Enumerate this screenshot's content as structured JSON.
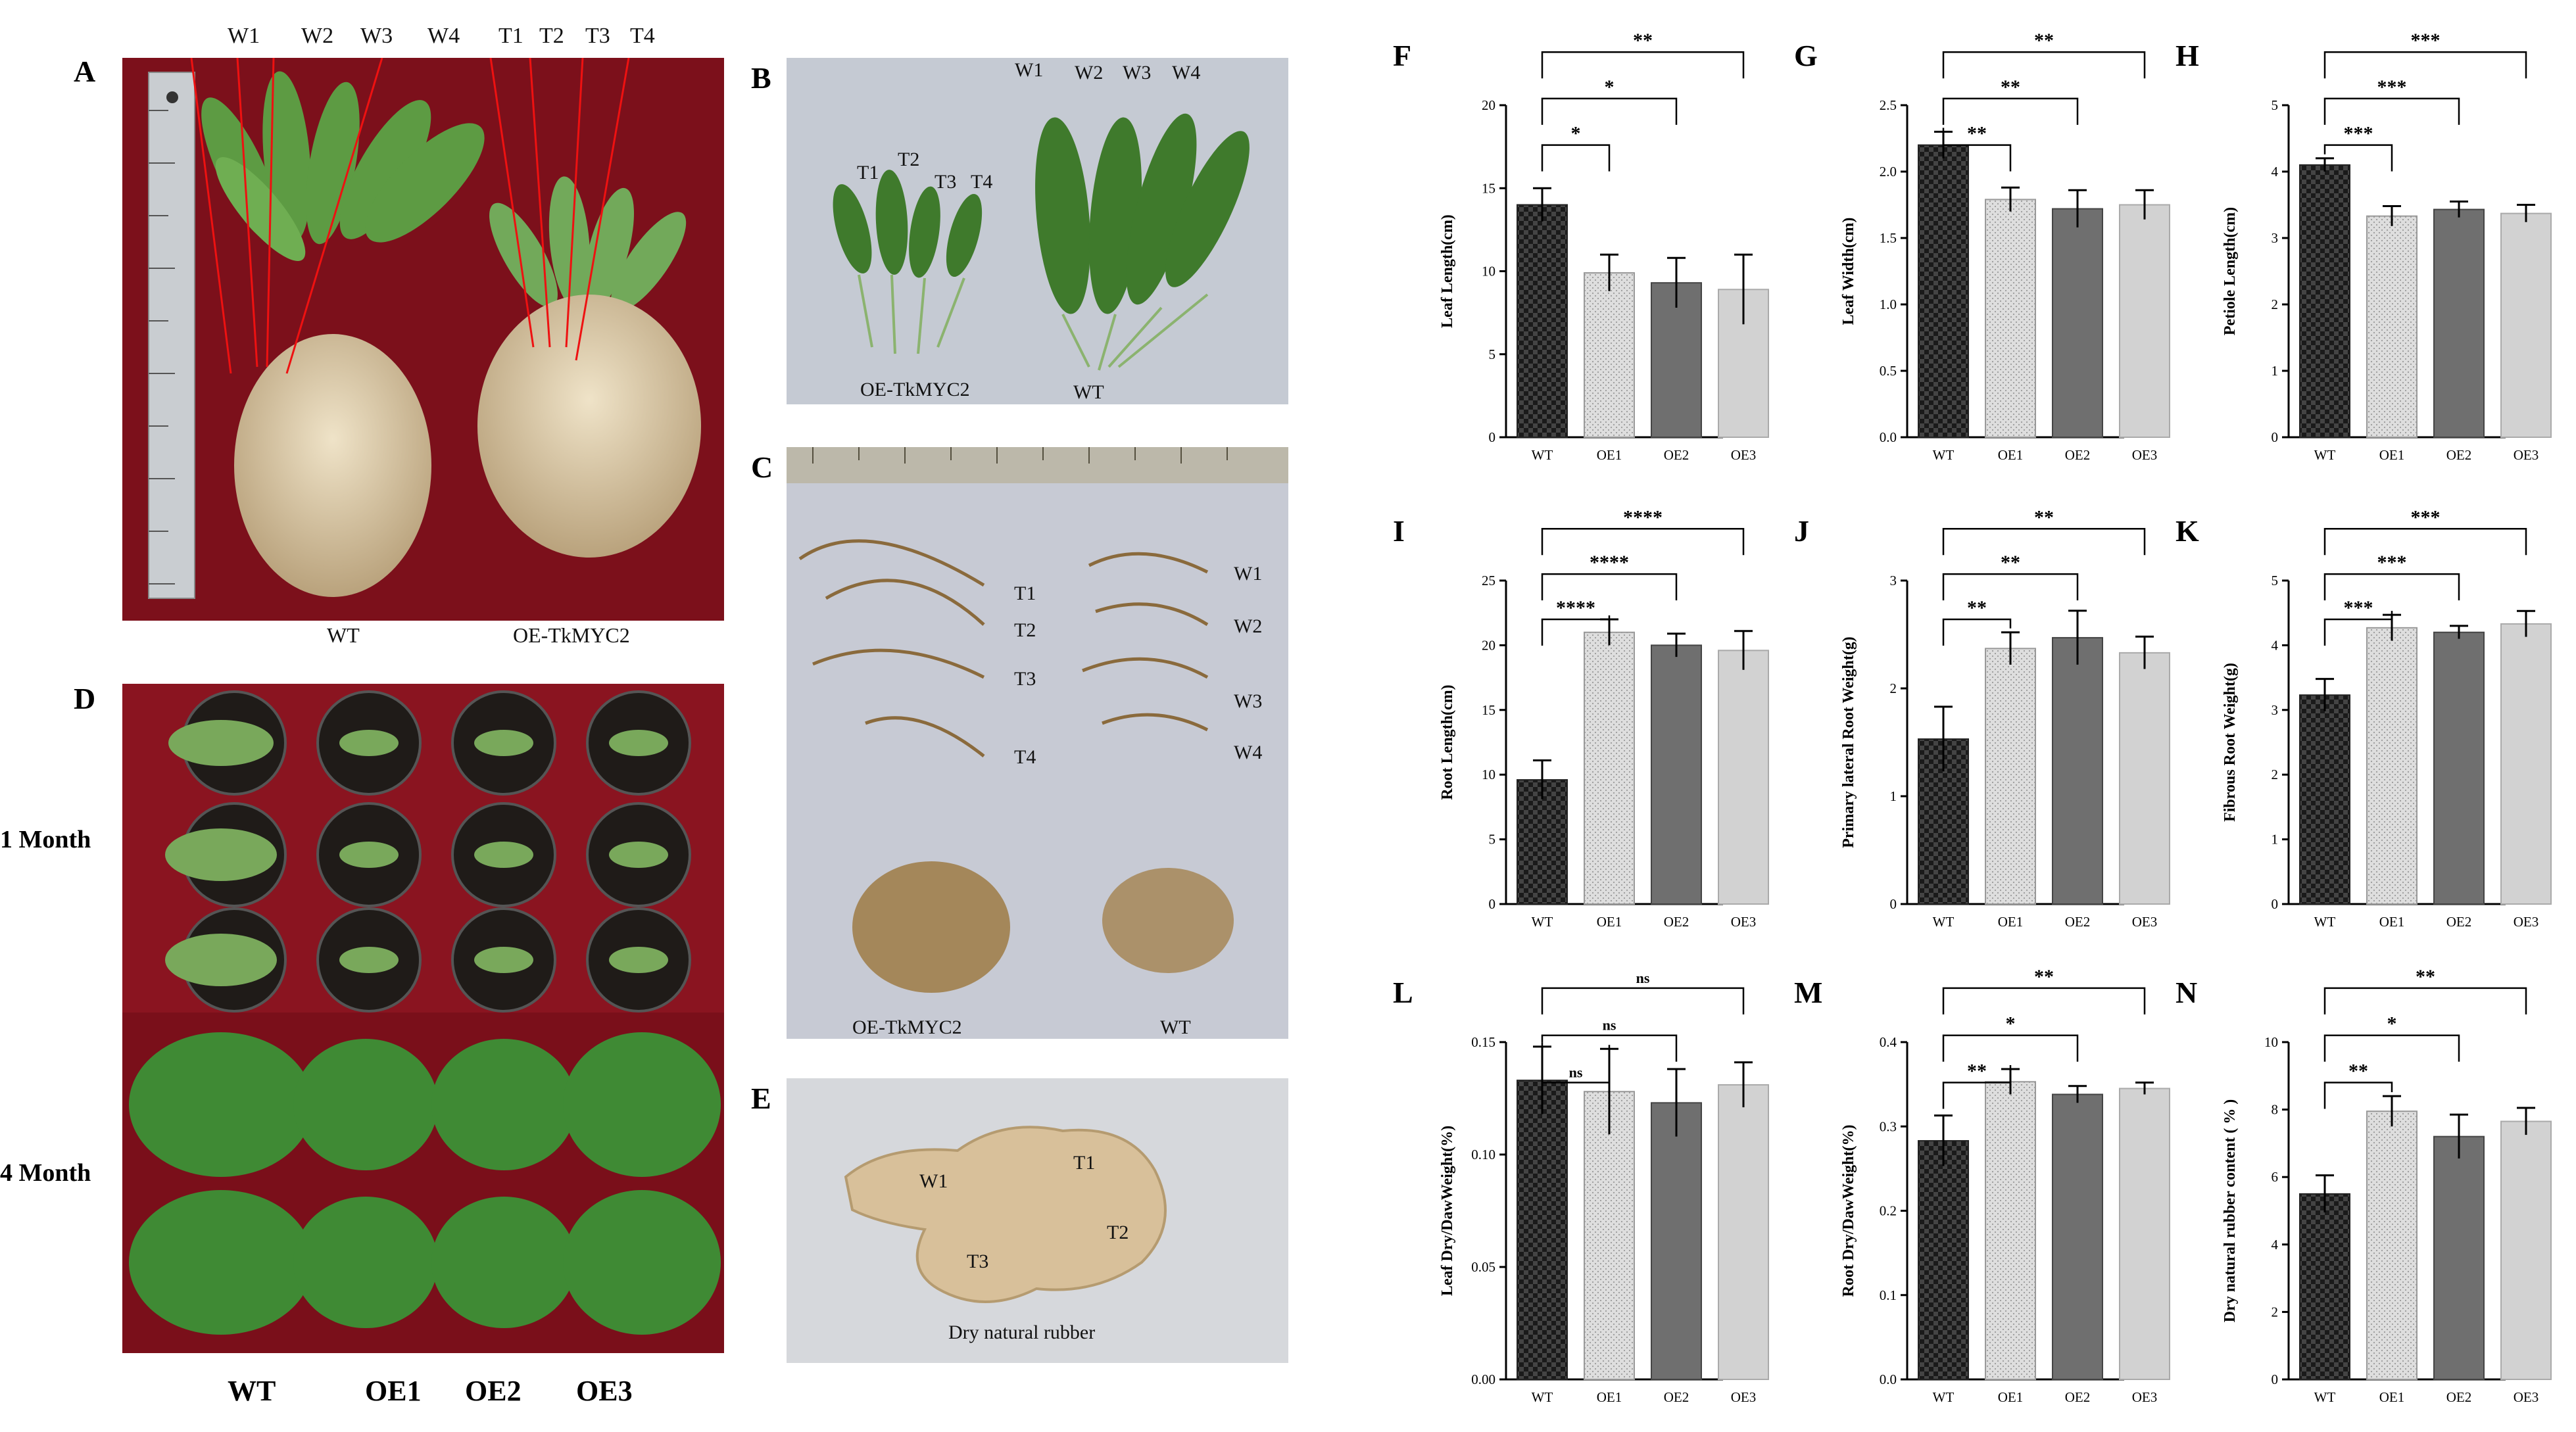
{
  "figure": {
    "panel_a": {
      "letter": "A",
      "top_labels": [
        "W1",
        "W2",
        "W3",
        "W4",
        "T1",
        "T2",
        "T3",
        "T4"
      ],
      "bottom_labels": [
        "WT",
        "OE-TkMYC2"
      ]
    },
    "panel_b": {
      "letter": "B",
      "wt_labels": [
        "W1",
        "W2",
        "W3",
        "W4"
      ],
      "oe_labels": [
        "T1",
        "T2",
        "T3",
        "T4"
      ],
      "bottom_labels": [
        "OE-TkMYC2",
        "WT"
      ]
    },
    "panel_c": {
      "letter": "C",
      "t_labels": [
        "T1",
        "T2",
        "T3",
        "T4"
      ],
      "w_labels": [
        "W1",
        "W2",
        "W3",
        "W4"
      ],
      "bottom_labels": [
        "OE-TkMYC2",
        "WT"
      ]
    },
    "panel_d": {
      "letter": "D",
      "row_labels": [
        "1 Month",
        "4 Month"
      ],
      "col_labels": [
        "WT",
        "OE1",
        "OE2",
        "OE3"
      ]
    },
    "panel_e": {
      "letter": "E",
      "piece_labels": [
        "W1",
        "T1",
        "T3",
        "T2"
      ],
      "caption": "Dry natural rubber"
    }
  },
  "chart_data": [
    {
      "panel": "F",
      "type": "bar",
      "categories": [
        "WT",
        "OE1",
        "OE2",
        "OE3"
      ],
      "values": [
        14.0,
        9.9,
        9.3,
        8.9
      ],
      "errors": [
        1.0,
        1.1,
        1.5,
        2.1
      ],
      "ylabel": "Leaf Length(cm)",
      "ylim": [
        0,
        20
      ],
      "yticks": [
        "0",
        "5",
        "10",
        "15",
        "20"
      ],
      "significance": [
        "*",
        "*",
        "**"
      ]
    },
    {
      "panel": "G",
      "type": "bar",
      "categories": [
        "WT",
        "OE1",
        "OE2",
        "OE3"
      ],
      "values": [
        2.2,
        1.79,
        1.72,
        1.75
      ],
      "errors": [
        0.1,
        0.09,
        0.14,
        0.11
      ],
      "ylabel": "Leaf Width(cm)",
      "ylim": [
        0,
        2.5
      ],
      "yticks": [
        "0.0",
        "0.5",
        "1.0",
        "1.5",
        "2.0",
        "2.5"
      ],
      "significance": [
        "**",
        "**",
        "**"
      ]
    },
    {
      "panel": "H",
      "type": "bar",
      "categories": [
        "WT",
        "OE1",
        "OE2",
        "OE3"
      ],
      "values": [
        4.1,
        3.33,
        3.43,
        3.37
      ],
      "errors": [
        0.1,
        0.15,
        0.12,
        0.13
      ],
      "ylabel": "Petiole Length(cm)",
      "ylim": [
        0,
        5
      ],
      "yticks": [
        "0",
        "1",
        "2",
        "3",
        "4",
        "5"
      ],
      "significance": [
        "***",
        "***",
        "***"
      ]
    },
    {
      "panel": "I",
      "type": "bar",
      "categories": [
        "WT",
        "OE1",
        "OE2",
        "OE3"
      ],
      "values": [
        9.6,
        21.0,
        20.0,
        19.6
      ],
      "errors": [
        1.5,
        1.0,
        0.9,
        1.5
      ],
      "ylabel": "Root Length(cm)",
      "ylim": [
        0,
        25
      ],
      "yticks": [
        "0",
        "5",
        "10",
        "15",
        "20",
        "25"
      ],
      "significance": [
        "****",
        "****",
        "****"
      ]
    },
    {
      "panel": "J",
      "type": "bar",
      "categories": [
        "WT",
        "OE1",
        "OE2",
        "OE3"
      ],
      "values": [
        1.53,
        2.37,
        2.47,
        2.33
      ],
      "errors": [
        0.3,
        0.15,
        0.25,
        0.15
      ],
      "ylabel": "Primary lateral Root Weight(g)",
      "ylim": [
        0,
        3
      ],
      "yticks": [
        "0",
        "1",
        "2",
        "3"
      ],
      "significance": [
        "**",
        "**",
        "**"
      ]
    },
    {
      "panel": "K",
      "type": "bar",
      "categories": [
        "WT",
        "OE1",
        "OE2",
        "OE3"
      ],
      "values": [
        3.23,
        4.27,
        4.2,
        4.33
      ],
      "errors": [
        0.25,
        0.2,
        0.1,
        0.2
      ],
      "ylabel": "Fibrous Root Weight(g)",
      "ylim": [
        0,
        5
      ],
      "yticks": [
        "0",
        "1",
        "2",
        "3",
        "4",
        "5"
      ],
      "significance": [
        "***",
        "***",
        "***"
      ]
    },
    {
      "panel": "L",
      "type": "bar",
      "categories": [
        "WT",
        "OE1",
        "OE2",
        "OE3"
      ],
      "values": [
        0.133,
        0.128,
        0.123,
        0.131
      ],
      "errors": [
        0.015,
        0.019,
        0.015,
        0.01
      ],
      "ylabel": "Leaf Dry/DawWeight(%)",
      "ylim": [
        0,
        0.15
      ],
      "yticks": [
        "0.00",
        "0.05",
        "0.10",
        "0.15"
      ],
      "significance": [
        "ns",
        "ns",
        "ns"
      ]
    },
    {
      "panel": "M",
      "type": "bar",
      "categories": [
        "WT",
        "OE1",
        "OE2",
        "OE3"
      ],
      "values": [
        0.283,
        0.353,
        0.338,
        0.345
      ],
      "errors": [
        0.03,
        0.015,
        0.01,
        0.007
      ],
      "ylabel": "Root Dry/DawWeight(%)",
      "ylim": [
        0,
        0.4
      ],
      "yticks": [
        "0.0",
        "0.1",
        "0.2",
        "0.3",
        "0.4"
      ],
      "significance": [
        "**",
        "*",
        "**"
      ]
    },
    {
      "panel": "N",
      "type": "bar",
      "categories": [
        "WT",
        "OE1",
        "OE2",
        "OE3"
      ],
      "values": [
        5.5,
        7.95,
        7.2,
        7.65
      ],
      "errors": [
        0.55,
        0.45,
        0.65,
        0.4
      ],
      "ylabel": "Dry natural rubber content ( % )",
      "ylim": [
        0,
        10
      ],
      "yticks": [
        "0",
        "2",
        "4",
        "6",
        "8",
        "10"
      ],
      "significance": [
        "**",
        "*",
        "**"
      ]
    }
  ],
  "colors": {
    "red_backdrop": "#7a0f1a",
    "wt_bar": "#3a3a3a",
    "oe1_bar": "#d9d9d9",
    "oe2_bar": "#6f6f6f",
    "oe3_bar": "#d2d2d2"
  }
}
